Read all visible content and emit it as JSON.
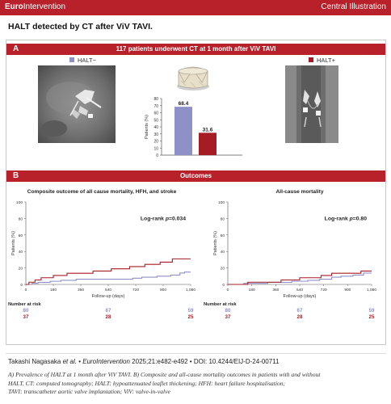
{
  "header": {
    "brand_bold": "Euro",
    "brand_rest": "Intervention",
    "section_label": "Central Illustration"
  },
  "title": "HALT detected by CT after ViV TAVI.",
  "panel_a": {
    "letter": "A",
    "heading": "117 patients underwent CT at 1 month after ViV TAVI"
  },
  "panel_b": {
    "letter": "B",
    "heading": "Outcomes"
  },
  "colors": {
    "halt_neg": "#8e90c8",
    "halt_pos": "#a61c24",
    "accent": "#b8202a"
  },
  "icons": {
    "valve": "bioprosthetic-valve-icon"
  },
  "chart_data": [
    {
      "type": "bar",
      "categories": [
        "HALT−",
        "HALT+"
      ],
      "values": [
        68.4,
        31.6
      ],
      "value_labels": [
        "68.4",
        "31.6"
      ],
      "ylabel": "Patients (%)",
      "ylim": [
        0,
        80
      ],
      "yticks": [
        "0",
        "10",
        "20",
        "30",
        "40",
        "50",
        "60",
        "70",
        "80"
      ],
      "legend": [
        "HALT−",
        "HALT+"
      ]
    },
    {
      "type": "line",
      "title": "Composite outcome of all cause mortality, HFH, and stroke",
      "xlabel": "Follow-up (days)",
      "ylabel": "Patients (%)",
      "xlim": [
        0,
        1080
      ],
      "ylim": [
        0,
        100
      ],
      "xticks": [
        "0",
        "180",
        "360",
        "540",
        "720",
        "900",
        "1,080"
      ],
      "yticks": [
        "0",
        "20",
        "40",
        "60",
        "80",
        "100"
      ],
      "annotation": "Log-rank p=0.034",
      "series": [
        {
          "name": "HALT−",
          "x": [
            0,
            40,
            80,
            160,
            230,
            330,
            500,
            620,
            700,
            760,
            860,
            950,
            1010,
            1040,
            1080
          ],
          "y": [
            0,
            1.3,
            2.5,
            3.8,
            5,
            6.3,
            6.3,
            6.3,
            7.5,
            8.8,
            10,
            11.3,
            13.8,
            15,
            15
          ]
        },
        {
          "name": "HALT+",
          "x": [
            0,
            20,
            60,
            100,
            180,
            270,
            440,
            560,
            680,
            780,
            880,
            960,
            1080
          ],
          "y": [
            0,
            2.7,
            5.4,
            8.1,
            10.8,
            13.5,
            16.2,
            18.9,
            21.6,
            24.3,
            27,
            31,
            31
          ]
        }
      ],
      "risk_table": {
        "label": "Number at risk",
        "rows": [
          {
            "name": "HALT−",
            "values": [
              "80",
              "67",
              "59"
            ]
          },
          {
            "name": "HALT+",
            "values": [
              "37",
              "28",
              "25"
            ]
          }
        ],
        "at_days": [
          0,
          540,
          1080
        ]
      }
    },
    {
      "type": "line",
      "title": "All-cause mortality",
      "xlabel": "Follow-up (days)",
      "ylabel": "Patients (%)",
      "xlim": [
        0,
        1080
      ],
      "ylim": [
        0,
        100
      ],
      "xticks": [
        "0",
        "180",
        "360",
        "540",
        "720",
        "900",
        "1,080"
      ],
      "yticks": [
        "0",
        "20",
        "40",
        "60",
        "80",
        "100"
      ],
      "annotation": "Log-rank p=0.80",
      "series": [
        {
          "name": "HALT−",
          "x": [
            0,
            120,
            300,
            480,
            600,
            690,
            780,
            850,
            940,
            1020,
            1080
          ],
          "y": [
            0,
            1.3,
            2.5,
            3.8,
            5,
            6.3,
            8.8,
            10,
            11.3,
            13.8,
            13.8
          ]
        },
        {
          "name": "HALT+",
          "x": [
            0,
            150,
            400,
            540,
            620,
            700,
            780,
            900,
            1000,
            1080
          ],
          "y": [
            0,
            2.7,
            5.4,
            8.1,
            8.1,
            10.8,
            13.5,
            13.5,
            16.2,
            16.2
          ]
        }
      ],
      "risk_table": {
        "label": "Number at risk",
        "rows": [
          {
            "name": "HALT−",
            "values": [
              "80",
              "67",
              "59"
            ]
          },
          {
            "name": "HALT+",
            "values": [
              "37",
              "28",
              "25"
            ]
          }
        ],
        "at_days": [
          0,
          540,
          1080
        ]
      }
    }
  ],
  "footer": {
    "citation_author": "Takashi Nagasaka",
    "citation_etal": "et al.",
    "citation_bullet1": "•",
    "citation_journal": "EuroIntervention",
    "citation_rest": "2025;21:e482-e492 • DOI: 10.4244/EIJ-D-24-00711",
    "caption_line1": "A) Prevalence of HALT at 1 month after ViV TAVI. B) Composite and all-cause mortality outcomes in patients with and without",
    "caption_line2": "HALT. CT: computed tomography; HALT: hypoattenuated leaflet thickening; HFH: heart failure hospitalisation;",
    "caption_line3": "TAVI: transcatheter aortic valve implantation; ViV: valve-in-valve"
  }
}
